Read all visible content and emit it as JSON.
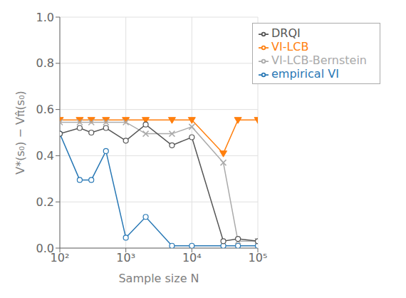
{
  "chart_data": {
    "type": "line",
    "x": [
      100,
      200,
      300,
      500,
      1000,
      2000,
      5000,
      10000,
      30000,
      50000,
      100000
    ],
    "series": [
      {
        "name": "empirical VI",
        "color": "#2878b5",
        "marker": "circle",
        "values": [
          0.495,
          0.295,
          0.295,
          0.42,
          0.045,
          0.135,
          0.01,
          0.01,
          0.01,
          0.01,
          0.01
        ]
      },
      {
        "name": "VI-LCB",
        "color": "#ff7f0e",
        "marker": "triangle-down",
        "values": [
          0.555,
          0.555,
          0.555,
          0.555,
          0.555,
          0.555,
          0.555,
          0.555,
          0.41,
          0.555,
          0.555
        ]
      },
      {
        "name": "VI-LCB-Bernstein",
        "color": "#aaaaaa",
        "marker": "x",
        "values": [
          0.545,
          0.545,
          0.545,
          0.545,
          0.545,
          0.495,
          0.495,
          0.525,
          0.37,
          0.03,
          0.03
        ]
      },
      {
        "name": "DRQI",
        "color": "#555555",
        "marker": "circle",
        "values": [
          0.495,
          0.52,
          0.5,
          0.52,
          0.465,
          0.535,
          0.445,
          0.48,
          0.03,
          0.04,
          0.03
        ]
      }
    ],
    "xlabel": "Sample size N",
    "ylabel": "V*(s₀) − Vπ̂(s₀)",
    "log": "x",
    "xlim": [
      100,
      100000
    ],
    "xticks": [
      {
        "value": 100,
        "label": "10²"
      },
      {
        "value": 1000,
        "label": "10³"
      },
      {
        "value": 10000,
        "label": "10⁴"
      },
      {
        "value": 100000,
        "label": "10⁵"
      }
    ],
    "ylim": [
      0.0,
      1.0
    ],
    "yticks": [
      {
        "value": 0.0,
        "label": "0.0"
      },
      0.2,
      0.4,
      0.6,
      0.8,
      {
        "value": 1.0,
        "label": "1.0"
      }
    ],
    "grid": true,
    "legend": "upper right"
  }
}
